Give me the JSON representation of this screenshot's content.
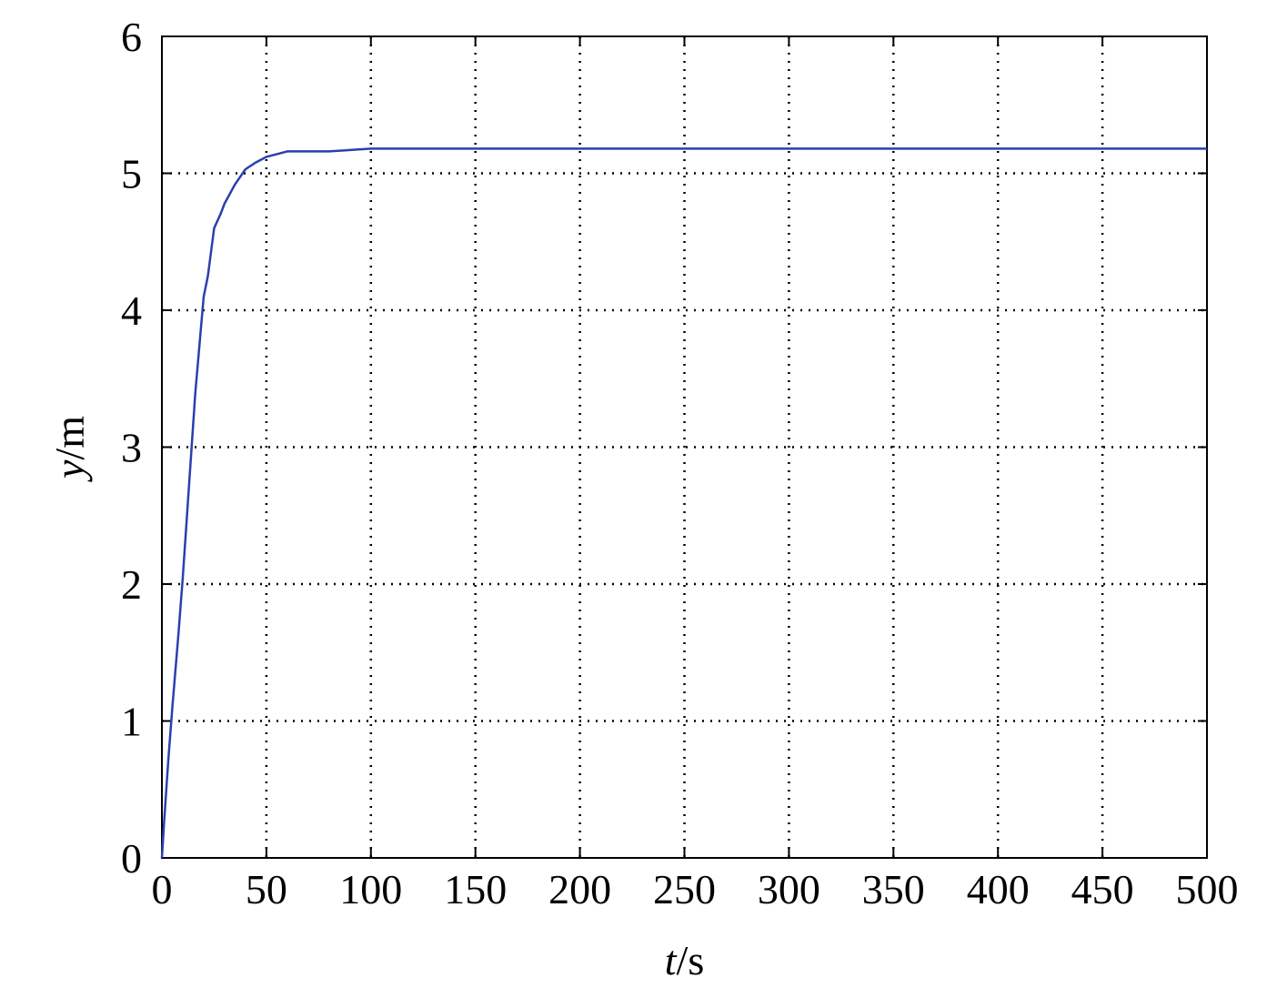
{
  "chart_data": {
    "type": "line",
    "title": "",
    "xlabel": {
      "var": "t",
      "unit": "/s"
    },
    "ylabel": {
      "var": "y",
      "unit": "/m"
    },
    "xlim": [
      0,
      500
    ],
    "ylim": [
      0,
      6
    ],
    "xticks": [
      "0",
      "50",
      "100",
      "150",
      "200",
      "250",
      "300",
      "350",
      "400",
      "450",
      "500"
    ],
    "yticks": [
      "0",
      "1",
      "2",
      "3",
      "4",
      "5",
      "6"
    ],
    "grid": true,
    "grid_style": "dotted",
    "series": [
      {
        "color": "#2a3fb0",
        "x": [
          0,
          1,
          3,
          5,
          8,
          10,
          12,
          14,
          16,
          18,
          20,
          22,
          25,
          28,
          30,
          35,
          40,
          45,
          50,
          55,
          60,
          70,
          80,
          90,
          100,
          150,
          200,
          300,
          400,
          500
        ],
        "y": [
          0,
          0.25,
          0.7,
          1.1,
          1.65,
          2.05,
          2.5,
          2.95,
          3.4,
          3.75,
          4.1,
          4.25,
          4.6,
          4.7,
          4.78,
          4.92,
          5.03,
          5.08,
          5.12,
          5.14,
          5.16,
          5.16,
          5.16,
          5.17,
          5.18,
          5.18,
          5.18,
          5.18,
          5.18,
          5.18
        ]
      }
    ]
  }
}
